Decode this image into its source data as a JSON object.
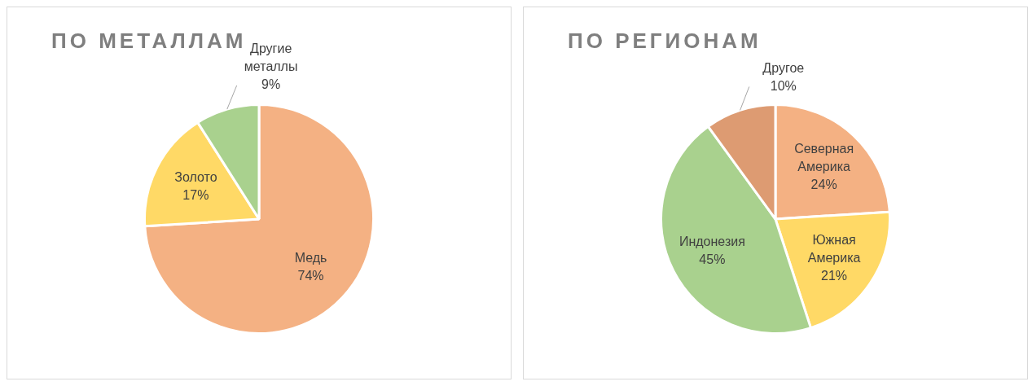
{
  "chart_data": [
    {
      "type": "pie",
      "title": "ПО МЕТАЛЛАМ",
      "categories": [
        "Медь",
        "Золото",
        "Другие металлы"
      ],
      "values": [
        74,
        17,
        9
      ],
      "colors": [
        "#f4b183",
        "#ffd966",
        "#a9d18e"
      ],
      "value_labels": [
        "74%",
        "17%",
        "9%"
      ]
    },
    {
      "type": "pie",
      "title": "ПО РЕГИОНАМ",
      "categories": [
        "Северная Америка",
        "Южная Америка",
        "Индонезия",
        "Другое"
      ],
      "values": [
        24,
        21,
        45,
        10
      ],
      "colors": [
        "#f4b183",
        "#ffd966",
        "#a9d18e",
        "#dd9b72"
      ],
      "value_labels": [
        "24%",
        "21%",
        "45%",
        "10%"
      ]
    }
  ]
}
